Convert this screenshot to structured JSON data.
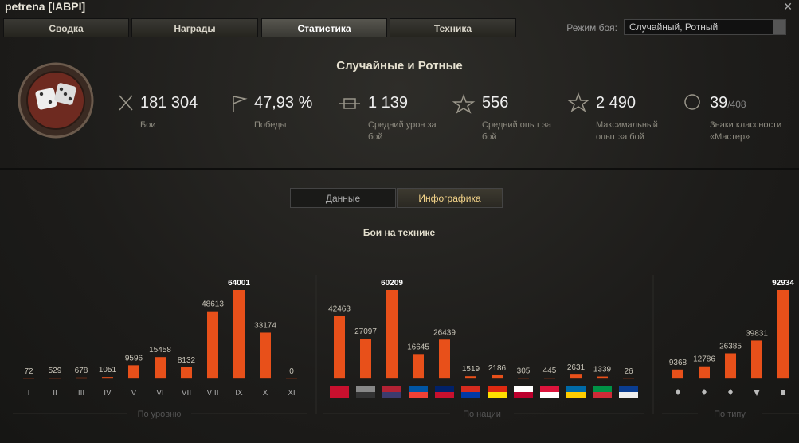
{
  "window": {
    "title": "petrena [IABPI]"
  },
  "tabs": [
    "Сводка",
    "Награды",
    "Статистика",
    "Техника"
  ],
  "mode": {
    "label": "Режим боя:",
    "value": "Случайный, Ротный"
  },
  "section_title": "Случайные и Ротные",
  "stats": [
    {
      "value": "181 304",
      "label": "Бои"
    },
    {
      "value": "47,93 %",
      "label": "Победы"
    },
    {
      "value": "1 139",
      "label": "Средний урон за бой"
    },
    {
      "value": "556",
      "label": "Средний опыт за бой"
    },
    {
      "value": "2 490",
      "label": "Максимальный опыт за бой"
    },
    {
      "value": "39",
      "total": "/408",
      "label": "Знаки классности «Мастер»"
    }
  ],
  "toggles": [
    "Данные",
    "Инфографика"
  ],
  "chart": {
    "type": "bar",
    "title": "Бои на технике",
    "color": "#e8501a",
    "groups": [
      {
        "label": "По уровню",
        "categories": [
          "I",
          "II",
          "III",
          "IV",
          "V",
          "VI",
          "VII",
          "VIII",
          "IX",
          "X",
          "XI"
        ],
        "values": [
          72,
          529,
          678,
          1051,
          9596,
          15458,
          8132,
          48613,
          64001,
          33174,
          0
        ]
      },
      {
        "label": "По нации",
        "categories": [
          null,
          null,
          null,
          null,
          null,
          null,
          null,
          null,
          null,
          null,
          null,
          null
        ],
        "values": [
          42463,
          27097,
          60209,
          16645,
          26439,
          1519,
          2186,
          305,
          445,
          2631,
          1339,
          26
        ]
      },
      {
        "label": "По типу",
        "categories": [
          null,
          null,
          null,
          null,
          null
        ],
        "values": [
          9368,
          12786,
          26385,
          39831,
          92934
        ]
      }
    ]
  }
}
